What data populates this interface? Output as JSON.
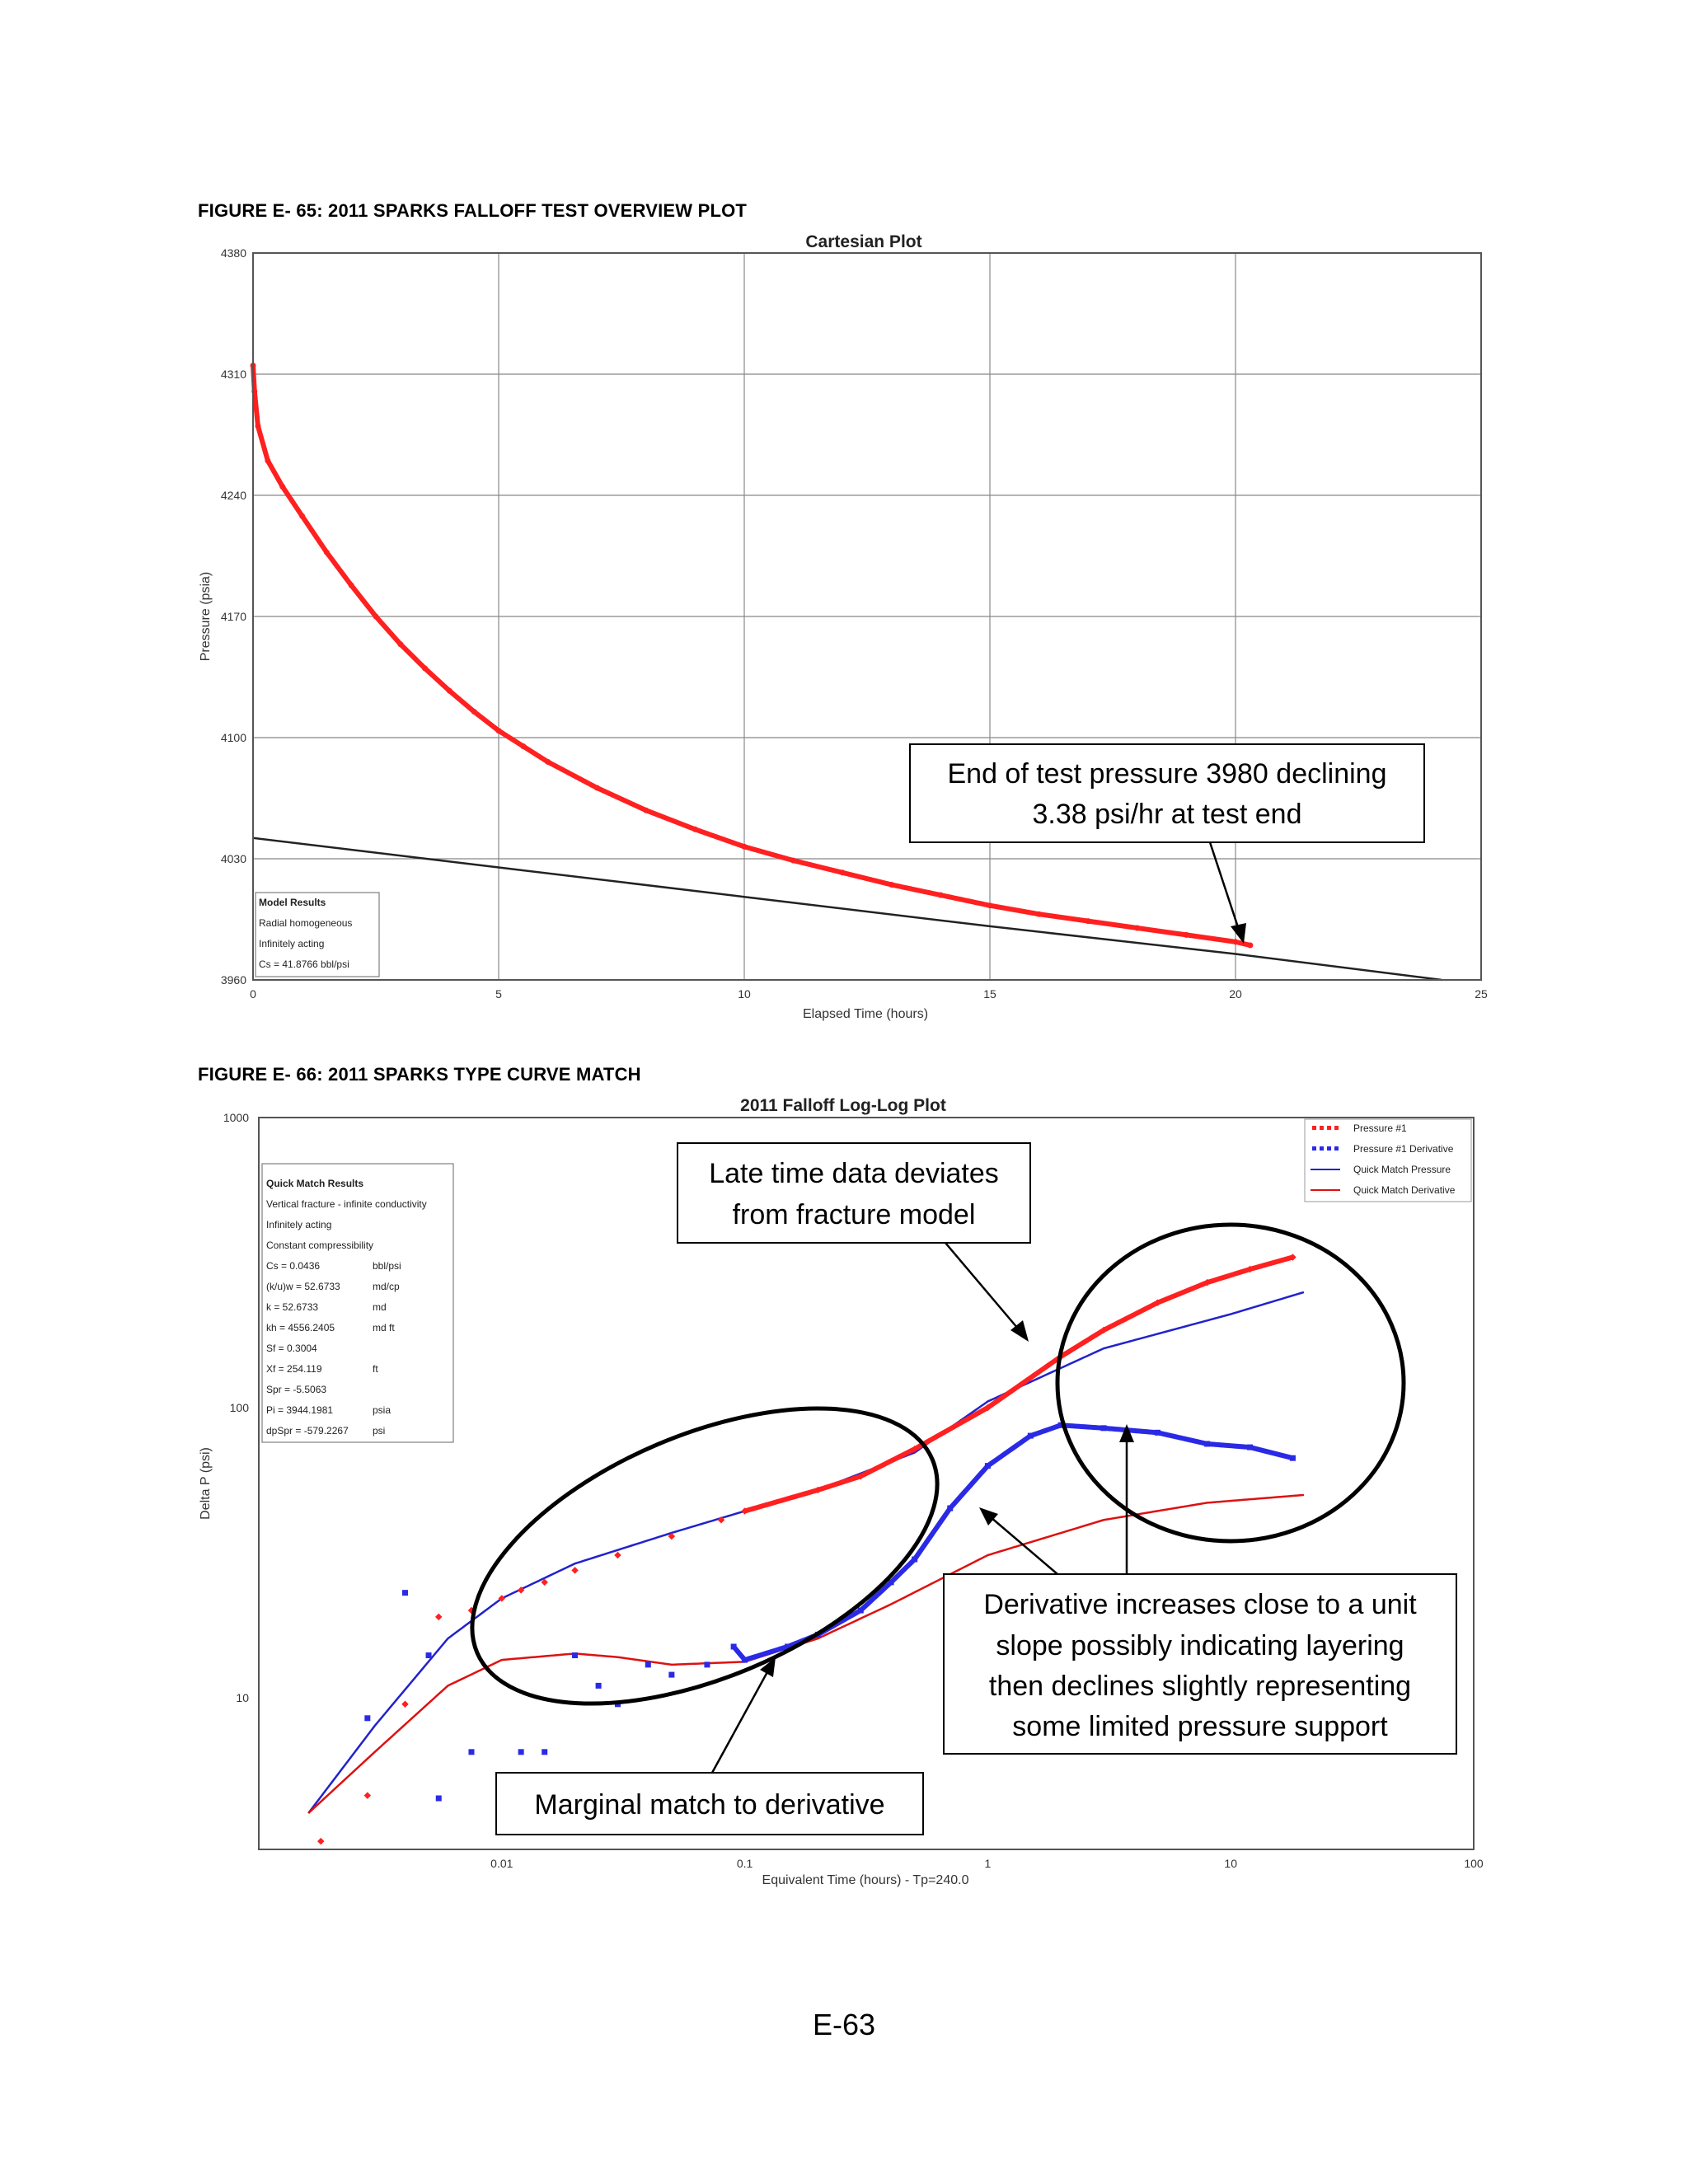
{
  "captions": {
    "fig65": "FIGURE E- 65:  2011 SPARKS FALLOFF TEST OVERVIEW PLOT",
    "fig66": "FIGURE E- 66:  2011 SPARKS TYPE CURVE MATCH"
  },
  "page_number": "E-63",
  "colors": {
    "data_red": "#ff2020",
    "deriv_blue": "#2a2ae6",
    "model_blue": "#2222cc",
    "model_red": "#dd1111",
    "model_black": "#222222",
    "grid": "#888888"
  },
  "chart_data": [
    {
      "type": "scatter",
      "title": "Cartesian Plot",
      "xlabel": "Elapsed Time (hours)",
      "ylabel": "Pressure (psia)",
      "xlim": [
        0,
        25
      ],
      "ylim": [
        3960,
        4380
      ],
      "xticks": [
        "0",
        "5",
        "10",
        "15",
        "20",
        "25"
      ],
      "yticks": [
        "3960",
        "4030",
        "4100",
        "4170",
        "4240",
        "4310",
        "4380"
      ],
      "grid": true,
      "series": [
        {
          "marker": "dots",
          "values_xy": [
            [
              0,
              4315
            ],
            [
              0.03,
              4300
            ],
            [
              0.1,
              4280
            ],
            [
              0.3,
              4260
            ],
            [
              0.6,
              4245
            ],
            [
              1.0,
              4228
            ],
            [
              1.5,
              4207
            ],
            [
              2,
              4188
            ],
            [
              2.5,
              4170
            ],
            [
              3,
              4154
            ],
            [
              3.5,
              4140
            ],
            [
              4,
              4127
            ],
            [
              4.5,
              4115
            ],
            [
              5,
              4104
            ],
            [
              5.5,
              4095
            ],
            [
              6,
              4086
            ],
            [
              7,
              4071
            ],
            [
              8,
              4058
            ],
            [
              9,
              4047
            ],
            [
              10,
              4037
            ],
            [
              11,
              4029
            ],
            [
              12,
              4022
            ],
            [
              13,
              4015
            ],
            [
              14,
              4009
            ],
            [
              15,
              4003
            ],
            [
              16,
              3998
            ],
            [
              17,
              3994
            ],
            [
              18,
              3990
            ],
            [
              19,
              3986
            ],
            [
              20,
              3982
            ],
            [
              20.3,
              3980
            ]
          ]
        },
        {
          "marker": "line",
          "values_xy": [
            [
              0,
              4042
            ],
            [
              5,
              4025
            ],
            [
              10,
              4008
            ],
            [
              15,
              3991
            ],
            [
              20,
              3975
            ],
            [
              24.2,
              3960
            ]
          ]
        }
      ],
      "model_results": {
        "heading": "Model Results",
        "lines": [
          "Radial homogeneous",
          "Infinitely acting",
          "Cs    = 41.8766  bbl/psi"
        ]
      },
      "annotations": [
        "End of test pressure 3980 declining",
        "3.38 psi/hr at test end"
      ]
    },
    {
      "type": "scatter",
      "title": "2011 Falloff Log-Log Plot",
      "xlabel": "Equivalent Time (hours) - Tp=240.0",
      "ylabel": "Delta P (psi)",
      "x_scale": "log",
      "y_scale": "log",
      "xlim": [
        0.001,
        100
      ],
      "ylim": [
        3,
        1000
      ],
      "xticks": [
        "0.01",
        "0.1",
        "1",
        "10",
        "100"
      ],
      "yticks": [
        "10",
        "100",
        "1000"
      ],
      "legend": {
        "placement": "top-right",
        "entries": [
          "Pressure #1",
          "Pressure #1 Derivative",
          "Quick Match Pressure",
          "Quick Match Derivative"
        ]
      },
      "series": [
        {
          "name": "Pressure #1",
          "values_xy": [
            [
              0.0018,
              3.2
            ],
            [
              0.0028,
              4.6
            ],
            [
              0.004,
              9.5
            ],
            [
              0.0055,
              19
            ],
            [
              0.0075,
              20
            ],
            [
              0.01,
              22
            ],
            [
              0.012,
              23.5
            ],
            [
              0.015,
              25
            ],
            [
              0.02,
              27.5
            ],
            [
              0.03,
              31
            ],
            [
              0.05,
              36
            ],
            [
              0.08,
              41
            ],
            [
              0.1,
              44
            ],
            [
              0.2,
              52
            ],
            [
              0.3,
              58
            ],
            [
              0.5,
              72
            ],
            [
              1,
              100
            ],
            [
              2,
              150
            ],
            [
              3,
              185
            ],
            [
              5,
              230
            ],
            [
              8,
              270
            ],
            [
              12,
              300
            ],
            [
              18,
              330
            ]
          ]
        },
        {
          "name": "Pressure #1 Derivative",
          "values_xy": [
            [
              0.0028,
              8.5
            ],
            [
              0.004,
              23
            ],
            [
              0.005,
              14
            ],
            [
              0.0055,
              4.5
            ],
            [
              0.0075,
              6.5
            ],
            [
              0.012,
              6.5
            ],
            [
              0.015,
              6.5
            ],
            [
              0.02,
              14
            ],
            [
              0.025,
              11
            ],
            [
              0.03,
              9.5
            ],
            [
              0.04,
              13
            ],
            [
              0.05,
              12
            ],
            [
              0.07,
              13
            ],
            [
              0.09,
              15
            ],
            [
              0.1,
              13.5
            ],
            [
              0.15,
              15
            ],
            [
              0.2,
              16.5
            ],
            [
              0.3,
              20
            ],
            [
              0.4,
              25
            ],
            [
              0.5,
              30
            ],
            [
              0.7,
              45
            ],
            [
              1,
              63
            ],
            [
              1.5,
              80
            ],
            [
              2,
              87
            ],
            [
              3,
              85
            ],
            [
              5,
              82
            ],
            [
              8,
              75
            ],
            [
              12,
              73
            ],
            [
              18,
              67
            ]
          ]
        },
        {
          "name": "Quick Match Pressure",
          "values_xy": [
            [
              0.0016,
              4
            ],
            [
              0.003,
              8
            ],
            [
              0.006,
              16
            ],
            [
              0.01,
              22
            ],
            [
              0.02,
              29
            ],
            [
              0.05,
              37
            ],
            [
              0.1,
              44
            ],
            [
              0.2,
              52
            ],
            [
              0.5,
              70
            ],
            [
              1,
              105
            ],
            [
              3,
              160
            ],
            [
              10,
              210
            ],
            [
              20,
              250
            ]
          ]
        },
        {
          "name": "Quick Match Derivative",
          "values_xy": [
            [
              0.0016,
              4
            ],
            [
              0.003,
              6.5
            ],
            [
              0.006,
              11
            ],
            [
              0.01,
              13.5
            ],
            [
              0.02,
              14.2
            ],
            [
              0.03,
              13.8
            ],
            [
              0.05,
              13
            ],
            [
              0.1,
              13.3
            ],
            [
              0.2,
              16
            ],
            [
              0.4,
              21
            ],
            [
              1,
              31
            ],
            [
              3,
              41
            ],
            [
              8,
              47
            ],
            [
              20,
              50
            ]
          ]
        }
      ],
      "quick_match_results": {
        "heading": "Quick Match Results",
        "lines": [
          [
            "Vertical fracture - infinite conductivity",
            ""
          ],
          [
            "Infinitely acting",
            ""
          ],
          [
            "Constant compressibility",
            ""
          ],
          [
            "Cs      = 0.0436",
            "bbl/psi"
          ],
          [
            "(k/u)w  = 52.6733",
            "md/cp"
          ],
          [
            "k        = 52.6733",
            "md"
          ],
          [
            "kh       = 4556.2405",
            "md ft"
          ],
          [
            "Sf       = 0.3004",
            ""
          ],
          [
            "Xf       = 254.119",
            "ft"
          ],
          [
            "Spr      = -5.5063",
            ""
          ],
          [
            "Pi        = 3944.1981",
            "psia"
          ],
          [
            "dpSpr   = -579.2267",
            "psi"
          ]
        ]
      },
      "annotations": {
        "late": [
          "Late time data deviates",
          "from fracture model"
        ],
        "derivative": [
          "Derivative increases close to a unit",
          "slope possibly indicating layering",
          "then declines slightly representing",
          "some limited pressure support"
        ],
        "marginal": [
          "Marginal match to derivative"
        ]
      }
    }
  ]
}
